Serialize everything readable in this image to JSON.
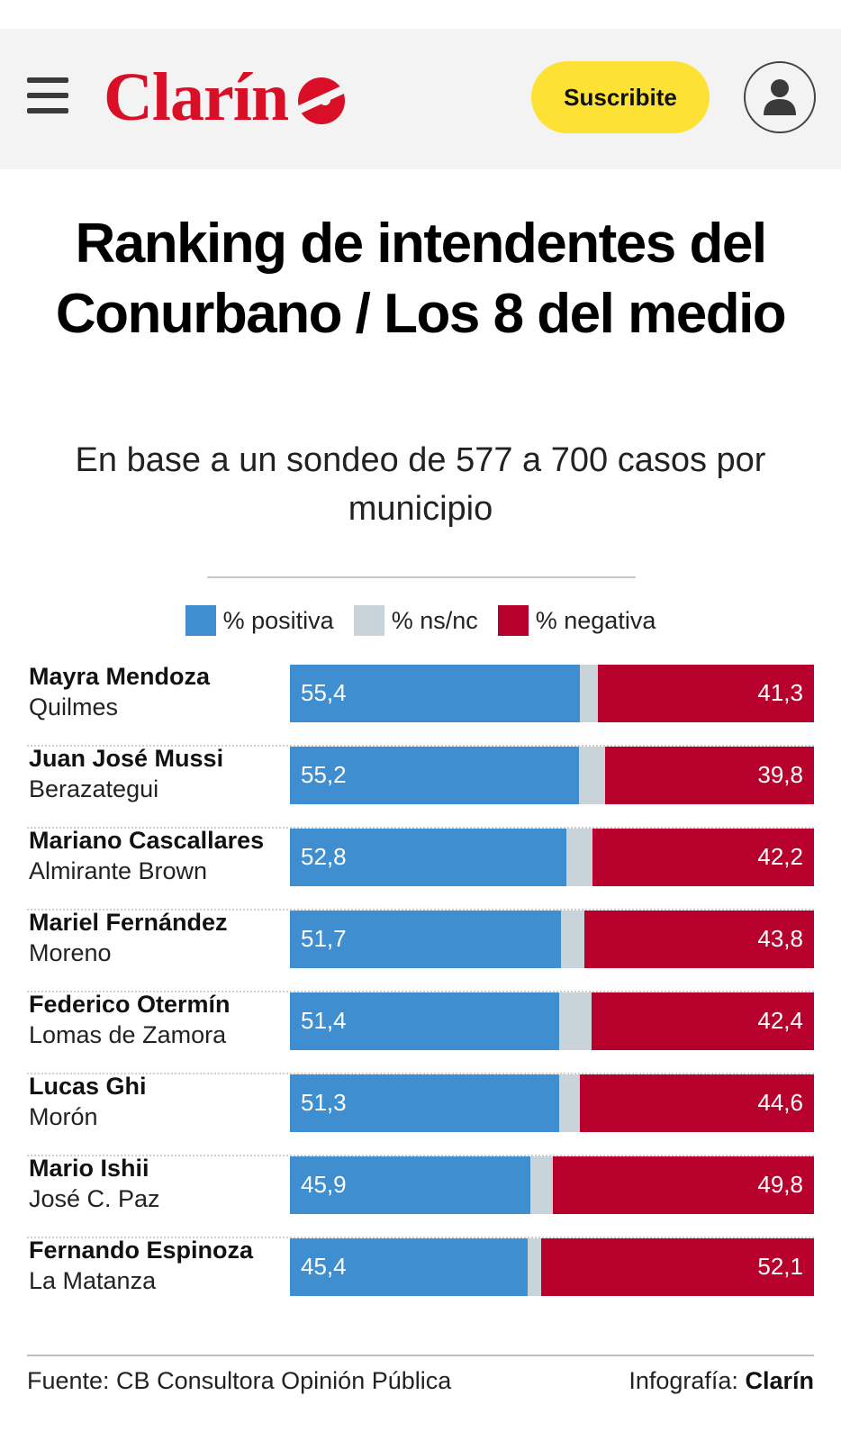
{
  "header": {
    "logo_text": "Clarín",
    "subscribe_label": "Suscribite",
    "brand_color": "#d80f26",
    "subscribe_color": "#fde135"
  },
  "chart_data": {
    "type": "bar",
    "orientation": "horizontal",
    "stacked": true,
    "title": "Ranking de intendentes del Conurbano / Los 8 del medio",
    "subtitle": "En base a un sondeo de 577 a 700 casos por municipio",
    "legend": [
      "% positiva",
      "% ns/nc",
      "% negativa"
    ],
    "colors": {
      "positive": "#3f8ecf",
      "nsnc": "#c9d3da",
      "negative": "#b8002c"
    },
    "rows": [
      {
        "name": "Mayra Mendoza",
        "municipio": "Quilmes",
        "positiva": 55.4,
        "negativa": 41.3,
        "positiva_label": "55,4",
        "negativa_label": "41,3"
      },
      {
        "name": "Juan José Mussi",
        "municipio": "Berazategui",
        "positiva": 55.2,
        "negativa": 39.8,
        "positiva_label": "55,2",
        "negativa_label": "39,8"
      },
      {
        "name": "Mariano Cascallares",
        "municipio": "Almirante Brown",
        "positiva": 52.8,
        "negativa": 42.2,
        "positiva_label": "52,8",
        "negativa_label": "42,2"
      },
      {
        "name": "Mariel Fernández",
        "municipio": "Moreno",
        "positiva": 51.7,
        "negativa": 43.8,
        "positiva_label": "51,7",
        "negativa_label": "43,8"
      },
      {
        "name": "Federico Otermín",
        "municipio": "Lomas de Zamora",
        "positiva": 51.4,
        "negativa": 42.4,
        "positiva_label": "51,4",
        "negativa_label": "42,4"
      },
      {
        "name": "Lucas Ghi",
        "municipio": "Morón",
        "positiva": 51.3,
        "negativa": 44.6,
        "positiva_label": "51,3",
        "negativa_label": "44,6"
      },
      {
        "name": "Mario Ishii",
        "municipio": "José C. Paz",
        "positiva": 45.9,
        "negativa": 49.8,
        "positiva_label": "45,9",
        "negativa_label": "49,8"
      },
      {
        "name": "Fernando Espinoza",
        "municipio": "La Matanza",
        "positiva": 45.4,
        "negativa": 52.1,
        "positiva_label": "45,4",
        "negativa_label": "52,1"
      }
    ],
    "xlim": [
      0,
      100
    ]
  },
  "footer": {
    "source": "Fuente: CB Consultora Opinión Pública",
    "credit_prefix": "Infografía:",
    "credit_brand": "Clarín"
  }
}
